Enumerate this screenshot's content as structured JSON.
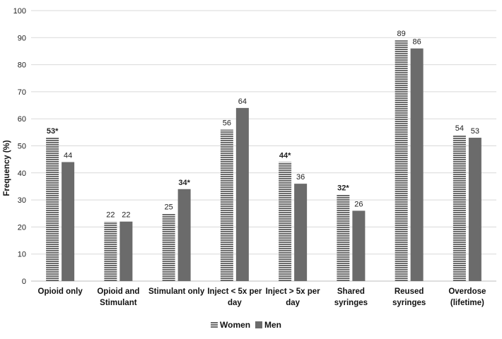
{
  "chart_data": {
    "type": "bar",
    "title": "",
    "xlabel": "",
    "ylabel": "Frequency (%)",
    "ylim": [
      0,
      100
    ],
    "yticks": [
      0,
      10,
      20,
      30,
      40,
      50,
      60,
      70,
      80,
      90,
      100
    ],
    "grid": true,
    "legend_position": "bottom",
    "categories": [
      [
        "Opioid only"
      ],
      [
        "Opioid and",
        "Stimulant"
      ],
      [
        "Stimulant only"
      ],
      [
        "Inject < 5x per",
        "day"
      ],
      [
        "Inject > 5x per",
        "day"
      ],
      [
        "Shared",
        "syringes"
      ],
      [
        "Reused",
        "syringes"
      ],
      [
        "Overdose",
        "(lifetime)"
      ]
    ],
    "series": [
      {
        "name": "Women",
        "pattern": "horizontal-stripes",
        "color": "#6b6b6b",
        "values": [
          53,
          22,
          25,
          56,
          44,
          32,
          89,
          54
        ],
        "labels": [
          "53*",
          "22",
          "25",
          "56",
          "44*",
          "32*",
          "89",
          "54"
        ],
        "bold_labels": [
          true,
          false,
          false,
          false,
          true,
          true,
          false,
          false
        ]
      },
      {
        "name": "Men",
        "pattern": "solid",
        "color": "#6b6b6b",
        "values": [
          44,
          22,
          34,
          64,
          36,
          26,
          86,
          53
        ],
        "labels": [
          "44",
          "22",
          "34*",
          "64",
          "36",
          "26",
          "86",
          "53"
        ],
        "bold_labels": [
          false,
          false,
          true,
          false,
          false,
          false,
          false,
          false
        ]
      }
    ]
  }
}
